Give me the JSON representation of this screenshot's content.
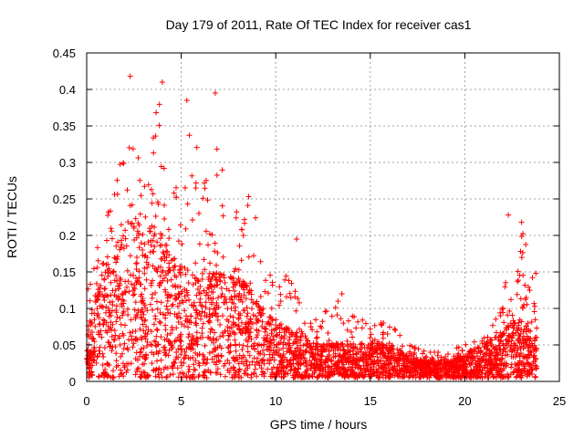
{
  "chart_data": {
    "type": "scatter",
    "title": "Day 179 of 2011, Rate Of TEC Index for receiver cas1",
    "xlabel": "GPS time / hours",
    "ylabel": "ROTI / TECUs",
    "xlim": [
      0,
      25
    ],
    "ylim": [
      0,
      0.45
    ],
    "xticks": [
      0,
      5,
      10,
      15,
      20,
      25
    ],
    "yticks": [
      0,
      0.05,
      0.1,
      0.15,
      0.2,
      0.25,
      0.3,
      0.35,
      0.4,
      0.45
    ],
    "xtick_labels": [
      "0",
      "5",
      "10",
      "15",
      "20",
      "25"
    ],
    "ytick_labels": [
      "0",
      "0.05",
      "0.1",
      "0.15",
      "0.2",
      "0.25",
      "0.3",
      "0.35",
      "0.4",
      "0.45"
    ],
    "grid": true,
    "marker": "+",
    "color": "#ff0000",
    "x_range_of_data": [
      0,
      23.8
    ],
    "envelope": {
      "description": "approximate upper envelope of ROTI values vs. hour",
      "hours": [
        0,
        0.5,
        1,
        1.5,
        2,
        2.5,
        3,
        3.5,
        4,
        4.5,
        5,
        5.5,
        6,
        6.5,
        7,
        7.5,
        8,
        8.5,
        9,
        9.5,
        10,
        11,
        12,
        13,
        14,
        15,
        16,
        17,
        18,
        19,
        20,
        21,
        22,
        22.5,
        23,
        23.5
      ],
      "upper": [
        0.12,
        0.19,
        0.22,
        0.26,
        0.33,
        0.33,
        0.34,
        0.35,
        0.41,
        0.37,
        0.3,
        0.36,
        0.3,
        0.27,
        0.39,
        0.24,
        0.24,
        0.26,
        0.24,
        0.2,
        0.15,
        0.14,
        0.08,
        0.12,
        0.09,
        0.08,
        0.08,
        0.05,
        0.04,
        0.04,
        0.05,
        0.06,
        0.1,
        0.22,
        0.21,
        0.16
      ],
      "typical": [
        0.04,
        0.07,
        0.1,
        0.12,
        0.13,
        0.14,
        0.13,
        0.13,
        0.12,
        0.11,
        0.1,
        0.09,
        0.09,
        0.09,
        0.09,
        0.09,
        0.09,
        0.08,
        0.07,
        0.06,
        0.05,
        0.04,
        0.03,
        0.03,
        0.03,
        0.03,
        0.03,
        0.02,
        0.015,
        0.015,
        0.02,
        0.03,
        0.04,
        0.05,
        0.05,
        0.04
      ]
    },
    "notable_points": [
      {
        "x": 2.3,
        "y": 0.418
      },
      {
        "x": 4.0,
        "y": 0.41
      },
      {
        "x": 6.8,
        "y": 0.395
      },
      {
        "x": 5.3,
        "y": 0.385
      },
      {
        "x": 22.3,
        "y": 0.228
      },
      {
        "x": 23.0,
        "y": 0.218
      },
      {
        "x": 11.1,
        "y": 0.195
      },
      {
        "x": 13.5,
        "y": 0.12
      }
    ]
  }
}
